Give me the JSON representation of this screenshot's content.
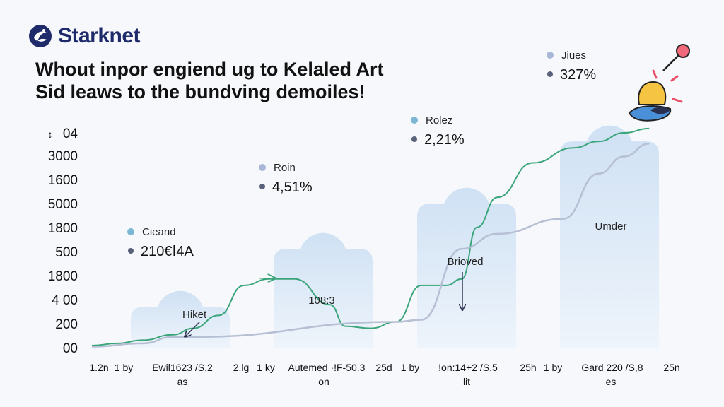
{
  "brand": {
    "name": "Starknet"
  },
  "headline": {
    "line1": "Whout inpor engiend ug to Kelaled Art",
    "line2": "Sid leaws to the bundving demoiles!"
  },
  "colors": {
    "column": "#d9e7f6",
    "series_green": "#3aa57a",
    "series_gray": "#b6bfd3",
    "dot_blue": "#7cb7d6",
    "dot_dark": "#59627a",
    "accent_yellow": "#f5c442",
    "accent_blue": "#4a90d9"
  },
  "chart_data": {
    "type": "area",
    "title": "Whout inpor engiend ug to Kelaled Art",
    "subtitle": "Sid leaws to the bundving demoiles!",
    "y_tick_labels": [
      "00",
      "200",
      "4 00",
      "1800",
      "500",
      "1800",
      "5000",
      "1600",
      "3000",
      "04"
    ],
    "y_axis_marker": "↕",
    "x_tick_labels": [
      "1.2n",
      "1 by",
      "Ewil1623 /S,2",
      "2.lg",
      "1 ky",
      "Autemed ·!F-50.3",
      "25d",
      "1 by",
      "!on:14+2 /S,5",
      "25h",
      "1 by",
      "Gard 220 /S,8",
      "25n"
    ],
    "x_sub_labels": [
      "as",
      "on",
      "lit",
      "es"
    ],
    "columns": [
      {
        "index": 0,
        "height": 1.9,
        "label": "Hiket"
      },
      {
        "index": 1,
        "height": 4.6,
        "label": "108:3"
      },
      {
        "index": 2,
        "height": 6.7,
        "label": "Brioved"
      },
      {
        "index": 3,
        "height": 9.6,
        "label": "Umder"
      }
    ],
    "series": [
      {
        "name": "green",
        "x": [
          0.0,
          0.5,
          1.0,
          1.6,
          2.0,
          2.5,
          3.0,
          3.5,
          4.0,
          4.7,
          5.0,
          5.5,
          6.0,
          6.5,
          7.0,
          7.3,
          7.6,
          8.0,
          8.7,
          9.5,
          10.0,
          10.5,
          11.0
        ],
        "values": [
          0.1,
          0.2,
          0.35,
          0.6,
          0.9,
          1.5,
          2.9,
          3.2,
          3.2,
          2.0,
          1.0,
          0.9,
          1.2,
          2.9,
          2.9,
          3.2,
          5.6,
          7.0,
          8.6,
          9.3,
          9.6,
          10.0,
          10.2
        ]
      },
      {
        "name": "gray",
        "x": [
          0.0,
          1.0,
          1.6,
          2.0,
          6.0,
          6.5,
          7.3,
          8.0,
          9.3,
          10.0,
          10.5,
          11.0
        ],
        "values": [
          0.05,
          0.2,
          0.5,
          0.5,
          1.2,
          1.3,
          4.6,
          5.3,
          6.0,
          8.1,
          8.9,
          9.5
        ]
      }
    ],
    "legend": [
      {
        "label": "Cieand",
        "value": "210€Ⅰ4A"
      },
      {
        "label": "Roin",
        "value": "4,51%"
      },
      {
        "label": "Rolez",
        "value": "2,21%"
      },
      {
        "label": "Jiues",
        "value": "327%"
      }
    ],
    "ylim": [
      0,
      10
    ],
    "xlim": [
      0,
      12
    ],
    "grid": false
  }
}
